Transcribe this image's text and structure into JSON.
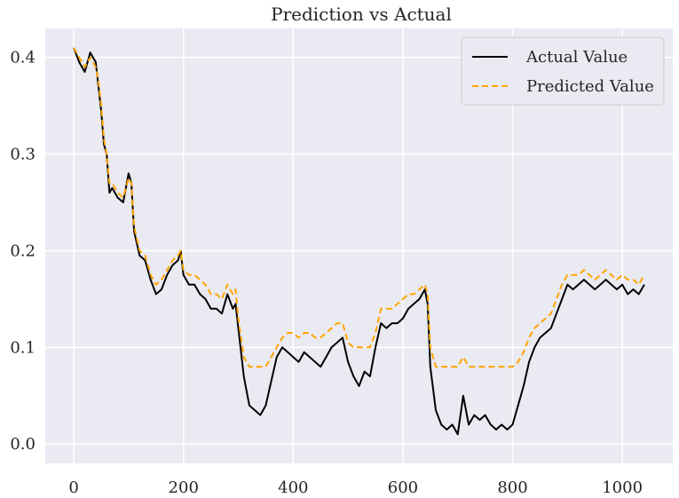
{
  "chart_data": {
    "type": "line",
    "title": "Prediction vs Actual",
    "xlabel": "",
    "ylabel": "",
    "xlim": [
      -52,
      1092
    ],
    "ylim": [
      -0.02,
      0.43
    ],
    "x_ticks": [
      0,
      200,
      400,
      600,
      800,
      1000
    ],
    "y_ticks": [
      0.0,
      0.1,
      0.2,
      0.3,
      0.4
    ],
    "x_tick_labels": [
      "0",
      "200",
      "400",
      "600",
      "800",
      "1000"
    ],
    "y_tick_labels": [
      "0.0",
      "0.1",
      "0.2",
      "0.3",
      "0.4"
    ],
    "grid": true,
    "legend_position": "upper-right",
    "x": [
      0,
      10,
      20,
      30,
      40,
      45,
      50,
      55,
      60,
      65,
      70,
      80,
      90,
      100,
      105,
      110,
      120,
      130,
      140,
      150,
      160,
      170,
      180,
      190,
      195,
      200,
      210,
      220,
      230,
      240,
      250,
      260,
      270,
      280,
      290,
      295,
      300,
      310,
      320,
      330,
      340,
      350,
      360,
      370,
      380,
      390,
      400,
      410,
      420,
      430,
      440,
      450,
      460,
      470,
      480,
      490,
      500,
      510,
      520,
      530,
      540,
      550,
      560,
      570,
      580,
      590,
      600,
      610,
      620,
      630,
      640,
      645,
      650,
      660,
      670,
      680,
      690,
      700,
      710,
      720,
      730,
      740,
      750,
      760,
      770,
      780,
      790,
      800,
      810,
      820,
      830,
      840,
      850,
      860,
      870,
      880,
      890,
      900,
      910,
      920,
      930,
      940,
      950,
      960,
      970,
      980,
      990,
      1000,
      1010,
      1020,
      1030,
      1040
    ],
    "series": [
      {
        "name": "Actual Value",
        "color": "#000000",
        "style": "solid",
        "values": [
          0.41,
          0.395,
          0.385,
          0.405,
          0.395,
          0.37,
          0.345,
          0.31,
          0.3,
          0.26,
          0.265,
          0.255,
          0.25,
          0.28,
          0.27,
          0.22,
          0.195,
          0.19,
          0.17,
          0.155,
          0.16,
          0.175,
          0.185,
          0.19,
          0.2,
          0.175,
          0.165,
          0.165,
          0.155,
          0.15,
          0.14,
          0.14,
          0.135,
          0.155,
          0.14,
          0.145,
          0.12,
          0.07,
          0.04,
          0.035,
          0.03,
          0.04,
          0.065,
          0.09,
          0.1,
          0.095,
          0.09,
          0.085,
          0.095,
          0.09,
          0.085,
          0.08,
          0.09,
          0.1,
          0.105,
          0.11,
          0.085,
          0.07,
          0.06,
          0.075,
          0.07,
          0.1,
          0.125,
          0.12,
          0.125,
          0.125,
          0.13,
          0.14,
          0.145,
          0.15,
          0.16,
          0.145,
          0.08,
          0.035,
          0.02,
          0.015,
          0.02,
          0.01,
          0.05,
          0.02,
          0.03,
          0.025,
          0.03,
          0.02,
          0.015,
          0.02,
          0.015,
          0.02,
          0.04,
          0.06,
          0.085,
          0.1,
          0.11,
          0.115,
          0.12,
          0.135,
          0.15,
          0.165,
          0.16,
          0.165,
          0.17,
          0.165,
          0.16,
          0.165,
          0.17,
          0.165,
          0.16,
          0.165,
          0.155,
          0.16,
          0.155,
          0.165
        ]
      },
      {
        "name": "Predicted Value",
        "color": "#ffa500",
        "style": "dashed",
        "values": [
          0.41,
          0.4,
          0.39,
          0.4,
          0.39,
          0.375,
          0.35,
          0.315,
          0.3,
          0.27,
          0.27,
          0.26,
          0.255,
          0.275,
          0.27,
          0.225,
          0.2,
          0.195,
          0.175,
          0.165,
          0.17,
          0.18,
          0.19,
          0.195,
          0.2,
          0.18,
          0.175,
          0.175,
          0.17,
          0.165,
          0.155,
          0.155,
          0.15,
          0.165,
          0.155,
          0.16,
          0.13,
          0.09,
          0.08,
          0.08,
          0.08,
          0.08,
          0.09,
          0.1,
          0.11,
          0.115,
          0.115,
          0.11,
          0.115,
          0.115,
          0.11,
          0.11,
          0.115,
          0.12,
          0.125,
          0.125,
          0.105,
          0.1,
          0.1,
          0.1,
          0.1,
          0.115,
          0.14,
          0.14,
          0.14,
          0.145,
          0.15,
          0.155,
          0.155,
          0.16,
          0.165,
          0.155,
          0.1,
          0.08,
          0.08,
          0.08,
          0.08,
          0.08,
          0.09,
          0.08,
          0.08,
          0.08,
          0.08,
          0.08,
          0.08,
          0.08,
          0.08,
          0.08,
          0.085,
          0.095,
          0.11,
          0.12,
          0.125,
          0.13,
          0.135,
          0.15,
          0.165,
          0.175,
          0.175,
          0.175,
          0.18,
          0.175,
          0.17,
          0.175,
          0.18,
          0.175,
          0.17,
          0.175,
          0.17,
          0.17,
          0.165,
          0.175
        ]
      }
    ]
  }
}
